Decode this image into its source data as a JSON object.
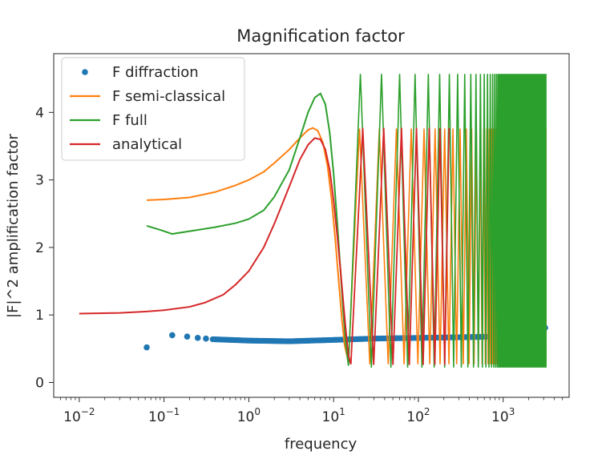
{
  "chart_data": {
    "type": "line",
    "title": "Magnification factor",
    "xlabel": "frequency",
    "ylabel": "|F|^2 amplification factor",
    "xscale": "log",
    "xlim": [
      0.005,
      6000
    ],
    "ylim": [
      -0.22,
      4.87
    ],
    "grid": false,
    "legend_position": "top-left",
    "x_ticks": [
      {
        "value": 0.01,
        "base": "10",
        "exp": "−2"
      },
      {
        "value": 0.1,
        "base": "10",
        "exp": "−1"
      },
      {
        "value": 1,
        "base": "10",
        "exp": "0"
      },
      {
        "value": 10,
        "base": "10",
        "exp": "1"
      },
      {
        "value": 100,
        "base": "10",
        "exp": "2"
      },
      {
        "value": 1000,
        "base": "10",
        "exp": "3"
      }
    ],
    "y_ticks": [
      {
        "value": 0,
        "label": "0"
      },
      {
        "value": 1,
        "label": "1"
      },
      {
        "value": 2,
        "label": "2"
      },
      {
        "value": 3,
        "label": "3"
      },
      {
        "value": 4,
        "label": "4"
      }
    ],
    "series": [
      {
        "name": "F diffraction",
        "style": "markers",
        "color": "#1f77b4",
        "points": [
          [
            0.0625,
            0.52
          ],
          [
            0.125,
            0.7
          ],
          [
            0.1875,
            0.68
          ],
          [
            0.25,
            0.66
          ],
          [
            0.3125,
            0.65
          ],
          [
            3125,
            0.81
          ]
        ],
        "dense_band": {
          "x_start": 0.375,
          "x_end": 3000,
          "y_values": [
            [
              0.375,
              0.64
            ],
            [
              1,
              0.62
            ],
            [
              3,
              0.61
            ],
            [
              10,
              0.63
            ],
            [
              30,
              0.65
            ],
            [
              100,
              0.66
            ],
            [
              1000,
              0.68
            ],
            [
              3000,
              0.7
            ]
          ]
        }
      },
      {
        "name": "F semi-classical",
        "style": "line",
        "color": "#ff7f0e",
        "points": [
          [
            0.0625,
            2.7
          ],
          [
            0.1,
            2.71
          ],
          [
            0.2,
            2.74
          ],
          [
            0.4,
            2.82
          ],
          [
            0.7,
            2.92
          ],
          [
            1,
            3.0
          ],
          [
            1.5,
            3.12
          ],
          [
            2,
            3.25
          ],
          [
            3,
            3.45
          ],
          [
            4,
            3.62
          ],
          [
            5,
            3.74
          ],
          [
            5.7,
            3.77
          ],
          [
            6.5,
            3.73
          ],
          [
            7.5,
            3.55
          ],
          [
            8.5,
            3.2
          ],
          [
            9.5,
            2.7
          ],
          [
            10.5,
            2.1
          ],
          [
            11.5,
            1.5
          ],
          [
            12.5,
            0.95
          ],
          [
            13.5,
            0.55
          ],
          [
            15,
            0.3
          ]
        ],
        "oscillation": {
          "x_start": 15,
          "x_end": 3200,
          "y_min": 0.27,
          "y_max": 3.76
        }
      },
      {
        "name": "F full",
        "style": "line",
        "color": "#2ca02c",
        "points": [
          [
            0.0625,
            2.32
          ],
          [
            0.09,
            2.26
          ],
          [
            0.125,
            2.2
          ],
          [
            0.2,
            2.24
          ],
          [
            0.4,
            2.3
          ],
          [
            0.7,
            2.36
          ],
          [
            1,
            2.42
          ],
          [
            1.5,
            2.55
          ],
          [
            2,
            2.75
          ],
          [
            3,
            3.15
          ],
          [
            4,
            3.62
          ],
          [
            5,
            4.0
          ],
          [
            6,
            4.22
          ],
          [
            7,
            4.28
          ],
          [
            8,
            4.12
          ],
          [
            9,
            3.7
          ],
          [
            10,
            3.1
          ],
          [
            11,
            2.4
          ],
          [
            12,
            1.7
          ],
          [
            13,
            1.05
          ],
          [
            14,
            0.55
          ],
          [
            15,
            0.25
          ]
        ],
        "oscillation": {
          "x_start": 15,
          "x_end": 3200,
          "y_min": 0.22,
          "y_max": 4.57
        }
      },
      {
        "name": "analytical",
        "style": "line",
        "color": "#d62728",
        "points": [
          [
            0.01,
            1.02
          ],
          [
            0.03,
            1.03
          ],
          [
            0.06,
            1.05
          ],
          [
            0.1,
            1.07
          ],
          [
            0.2,
            1.12
          ],
          [
            0.3,
            1.18
          ],
          [
            0.5,
            1.3
          ],
          [
            0.7,
            1.45
          ],
          [
            1,
            1.65
          ],
          [
            1.5,
            2.0
          ],
          [
            2,
            2.35
          ],
          [
            3,
            2.9
          ],
          [
            4,
            3.3
          ],
          [
            5,
            3.52
          ],
          [
            6,
            3.62
          ],
          [
            7,
            3.6
          ],
          [
            8,
            3.45
          ],
          [
            9,
            3.15
          ],
          [
            10,
            2.7
          ],
          [
            11,
            2.2
          ],
          [
            12,
            1.7
          ],
          [
            13,
            1.2
          ],
          [
            14,
            0.75
          ],
          [
            15,
            0.4
          ],
          [
            16,
            0.27
          ]
        ],
        "oscillation": {
          "x_start": 16,
          "x_end": 220,
          "y_min": 0.26,
          "y_max": 3.77
        }
      }
    ]
  }
}
